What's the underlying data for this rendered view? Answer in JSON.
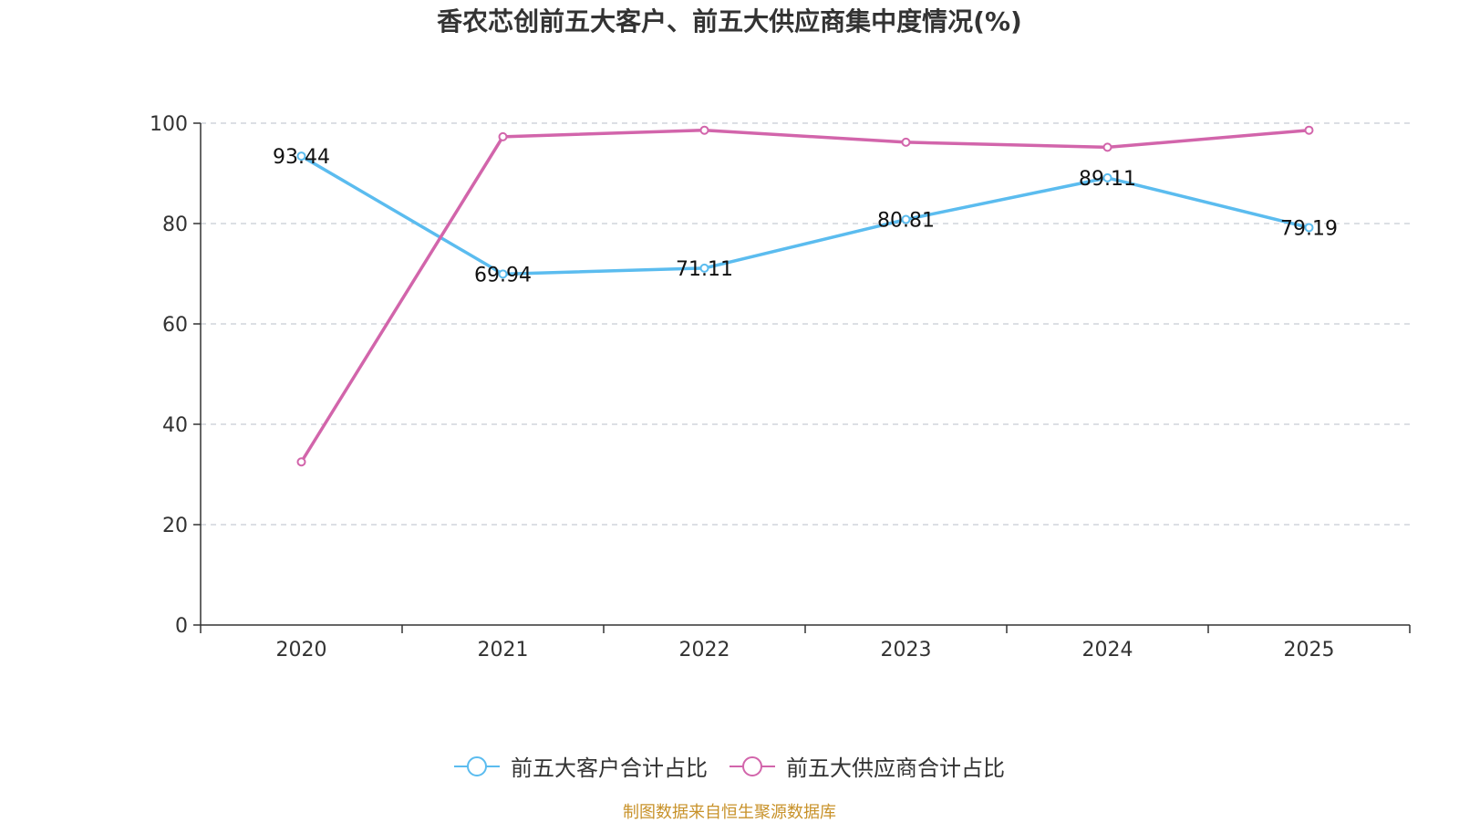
{
  "chart_data": {
    "type": "line",
    "title": "香农芯创前五大客户、前五大供应商集中度情况(%)",
    "categories": [
      "2020",
      "2021",
      "2022",
      "2023",
      "2024",
      "2025"
    ],
    "ylim": [
      0,
      100
    ],
    "yticks": [
      0,
      20,
      40,
      60,
      80,
      100
    ],
    "grid": true,
    "legend_position": "bottom",
    "series": [
      {
        "name": "前五大客户合计占比",
        "color": "#5bbcef",
        "values": [
          93.44,
          69.94,
          71.11,
          80.81,
          89.11,
          79.19
        ],
        "labels": [
          "93.44",
          "69.94",
          "71.11",
          "80.81",
          "89.11",
          "79.19"
        ]
      },
      {
        "name": "前五大供应商合计占比",
        "color": "#d265ab",
        "values": [
          32.5,
          97.3,
          98.6,
          96.2,
          95.2,
          98.6
        ],
        "labels": []
      }
    ]
  },
  "source_note": "制图数据来自恒生聚源数据库"
}
